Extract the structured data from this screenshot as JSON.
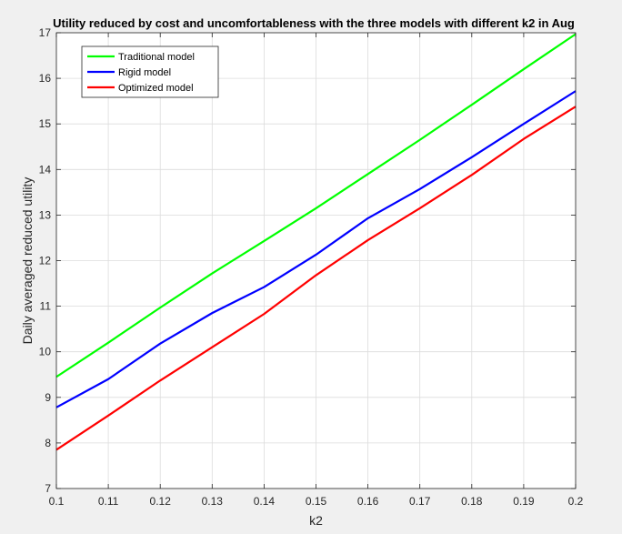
{
  "chart_data": {
    "type": "line",
    "title": "Utility reduced by cost and uncomfortableness with the three models with different k2 in Aug",
    "xlabel": "k2",
    "ylabel": "Daily averaged reduced utility",
    "xlim": [
      0.1,
      0.2
    ],
    "ylim": [
      7,
      17
    ],
    "x": [
      0.1,
      0.11,
      0.12,
      0.13,
      0.14,
      0.15,
      0.16,
      0.17,
      0.18,
      0.19,
      0.2
    ],
    "xticks": [
      "0.1",
      "0.11",
      "0.12",
      "0.13",
      "0.14",
      "0.15",
      "0.16",
      "0.17",
      "0.18",
      "0.19",
      "0.2"
    ],
    "yticks": [
      "7",
      "8",
      "9",
      "10",
      "11",
      "12",
      "13",
      "14",
      "15",
      "16",
      "17"
    ],
    "grid": true,
    "legend_position": "top-left",
    "series": [
      {
        "name": "Traditional model",
        "color": "#00ff00",
        "values": [
          9.45,
          10.2,
          10.97,
          11.72,
          12.43,
          13.15,
          13.9,
          14.65,
          15.42,
          16.2,
          16.97
        ]
      },
      {
        "name": "Rigid model",
        "color": "#0000ff",
        "values": [
          8.78,
          9.4,
          10.18,
          10.85,
          11.42,
          12.13,
          12.93,
          13.57,
          14.27,
          15.0,
          15.72
        ]
      },
      {
        "name": "Optimized model",
        "color": "#ff0000",
        "values": [
          7.85,
          8.6,
          9.37,
          10.1,
          10.83,
          11.68,
          12.45,
          13.15,
          13.88,
          14.67,
          15.38
        ]
      }
    ]
  }
}
